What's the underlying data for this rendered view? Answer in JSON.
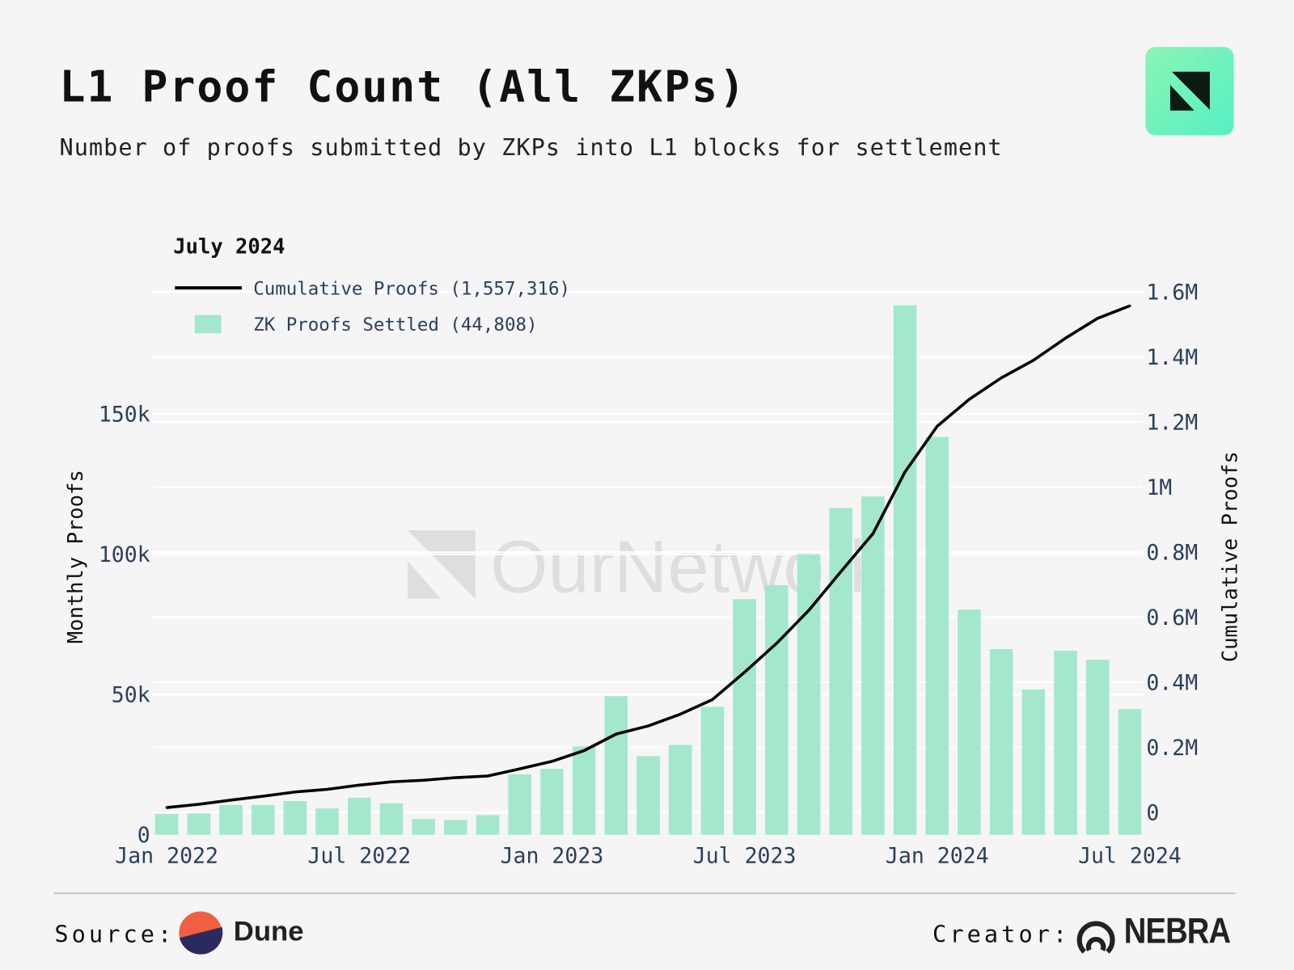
{
  "header": {
    "title": "L1 Proof Count (All ZKPs)",
    "subtitle": "Number of proofs submitted by ZKPs into L1 blocks for settlement"
  },
  "watermark": "OurNetwork",
  "footer": {
    "source_label": "Source:",
    "source_name": "Dune",
    "creator_label": "Creator:",
    "creator_name": "NEBRA"
  },
  "chart_data": {
    "type": "bar",
    "title": "L1 Proof Count (All ZKPs)",
    "legend": {
      "title": "July 2024",
      "placement": "top-left"
    },
    "categories": [
      "2022-01",
      "2022-02",
      "2022-03",
      "2022-04",
      "2022-05",
      "2022-06",
      "2022-07",
      "2022-08",
      "2022-09",
      "2022-10",
      "2022-11",
      "2022-12",
      "2023-01",
      "2023-02",
      "2023-03",
      "2023-04",
      "2023-05",
      "2023-06",
      "2023-07",
      "2023-08",
      "2023-09",
      "2023-10",
      "2023-11",
      "2023-12",
      "2024-01",
      "2024-02",
      "2024-03",
      "2024-04",
      "2024-05",
      "2024-06",
      "2024-07"
    ],
    "x_ticks": [
      {
        "label": "Jan 2022",
        "index": 0
      },
      {
        "label": "Jul 2022",
        "index": 6
      },
      {
        "label": "Jan 2023",
        "index": 12
      },
      {
        "label": "Jul 2023",
        "index": 18
      },
      {
        "label": "Jan 2024",
        "index": 24
      },
      {
        "label": "Jul 2024",
        "index": 30
      }
    ],
    "series": [
      {
        "name": "ZK Proofs Settled",
        "legend_label": "ZK Proofs Settled (44,808)",
        "type": "bar",
        "axis": "left",
        "color": "#a3e8cc",
        "values": [
          7400,
          7600,
          10600,
          10600,
          12000,
          9400,
          13200,
          11200,
          5600,
          5300,
          7000,
          21500,
          23500,
          31500,
          49400,
          28000,
          32000,
          45600,
          84000,
          89000,
          100000,
          116500,
          120600,
          188800,
          141800,
          80300,
          66200,
          51800,
          65600,
          62400,
          44808
        ]
      },
      {
        "name": "Cumulative Proofs",
        "legend_label": "Cumulative Proofs (1,557,316)",
        "type": "line",
        "axis": "right",
        "color": "#000000",
        "values": [
          15000,
          25000,
          38000,
          50000,
          63000,
          71000,
          84000,
          94000,
          99000,
          107000,
          112000,
          134000,
          157000,
          190000,
          241000,
          266000,
          302000,
          347000,
          431000,
          520000,
          621000,
          740000,
          857000,
          1047000,
          1187000,
          1270000,
          1336000,
          1390000,
          1458000,
          1519000,
          1557316
        ]
      }
    ],
    "y_left": {
      "label": "Monthly Proofs",
      "ticks": [
        "0",
        "50k",
        "100k",
        "150k"
      ],
      "tick_values": [
        0,
        50000,
        100000,
        150000
      ],
      "range": [
        0,
        190000
      ]
    },
    "y_right": {
      "label": "Cumulative Proofs",
      "ticks": [
        "0",
        "0.2M",
        "0.4M",
        "0.6M",
        "0.8M",
        "1M",
        "1.2M",
        "1.4M",
        "1.6M"
      ],
      "tick_values": [
        0,
        200000,
        400000,
        600000,
        800000,
        1000000,
        1200000,
        1400000,
        1600000
      ],
      "range": [
        -70000,
        1620000
      ]
    },
    "grid": true
  }
}
